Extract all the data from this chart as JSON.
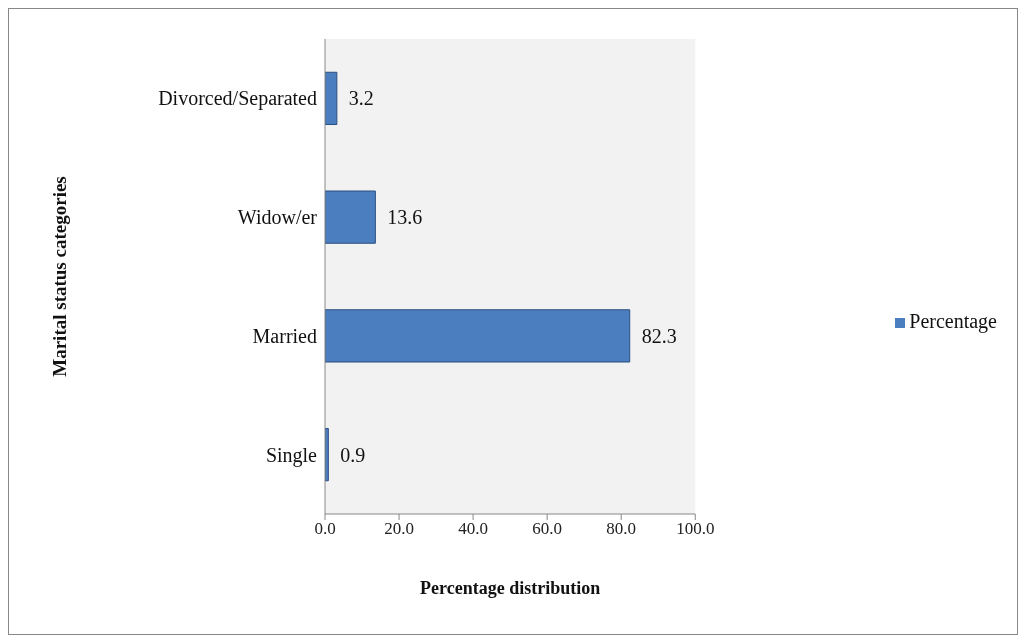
{
  "chart_data": {
    "type": "bar",
    "orientation": "horizontal",
    "xlabel": "Percentage distribution",
    "ylabel": "Marital status categories",
    "categories": [
      "Divorced/Separated",
      "Widow/er",
      "Married",
      "Single"
    ],
    "series": [
      {
        "name": "Percentage",
        "color": "#4a7ebf",
        "values": [
          3.2,
          13.6,
          82.3,
          0.9
        ]
      }
    ],
    "xlim": [
      0,
      100
    ],
    "xticks": [
      {
        "value": 0,
        "label": "0.0"
      },
      {
        "value": 20,
        "label": "20.0"
      },
      {
        "value": 40,
        "label": "40.0"
      },
      {
        "value": 60,
        "label": "60.0"
      },
      {
        "value": 80,
        "label": "80.0"
      },
      {
        "value": 100,
        "label": "100.0"
      }
    ],
    "data_labels": true,
    "legend": "right",
    "grid": false
  }
}
